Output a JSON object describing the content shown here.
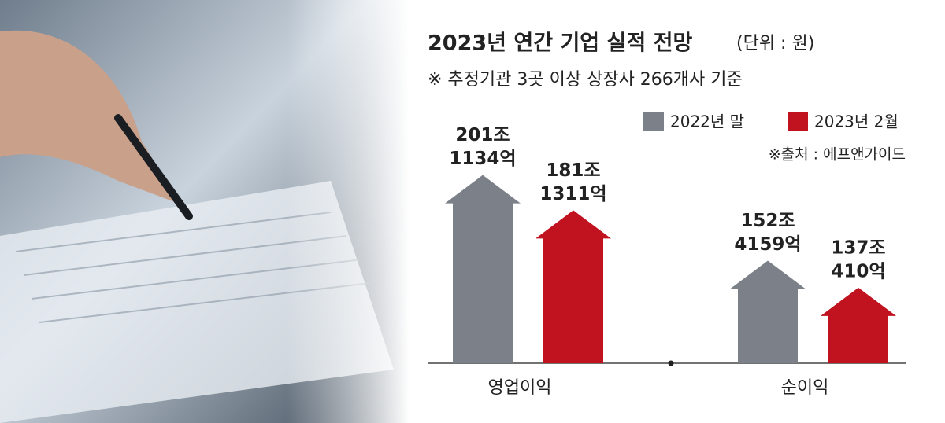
{
  "chart_data": {
    "type": "arrow-bar",
    "title": "2023년 연간 기업 실적 전망",
    "unit": "(단위 : 원)",
    "subtitle": "※ 추정기관 3곳 이상 상장사 266개사 기준",
    "source": "※출처 : 에프앤가이드",
    "categories": [
      "영업이익",
      "순이익"
    ],
    "series": [
      {
        "name": "2022년 말",
        "color": "#7b8089",
        "values": [
          201113400000000,
          152415900000000
        ],
        "value_labels": [
          [
            "201조",
            "1134억"
          ],
          [
            "152조",
            "4159억"
          ]
        ]
      },
      {
        "name": "2023년 2월",
        "color": "#c1121f",
        "values": [
          181131100000000,
          137041000000000
        ],
        "value_labels": [
          [
            "181조",
            "1311억"
          ],
          [
            "137조",
            "410억"
          ]
        ]
      }
    ],
    "ylim": [
      94000000000000,
      205000000000000
    ]
  }
}
